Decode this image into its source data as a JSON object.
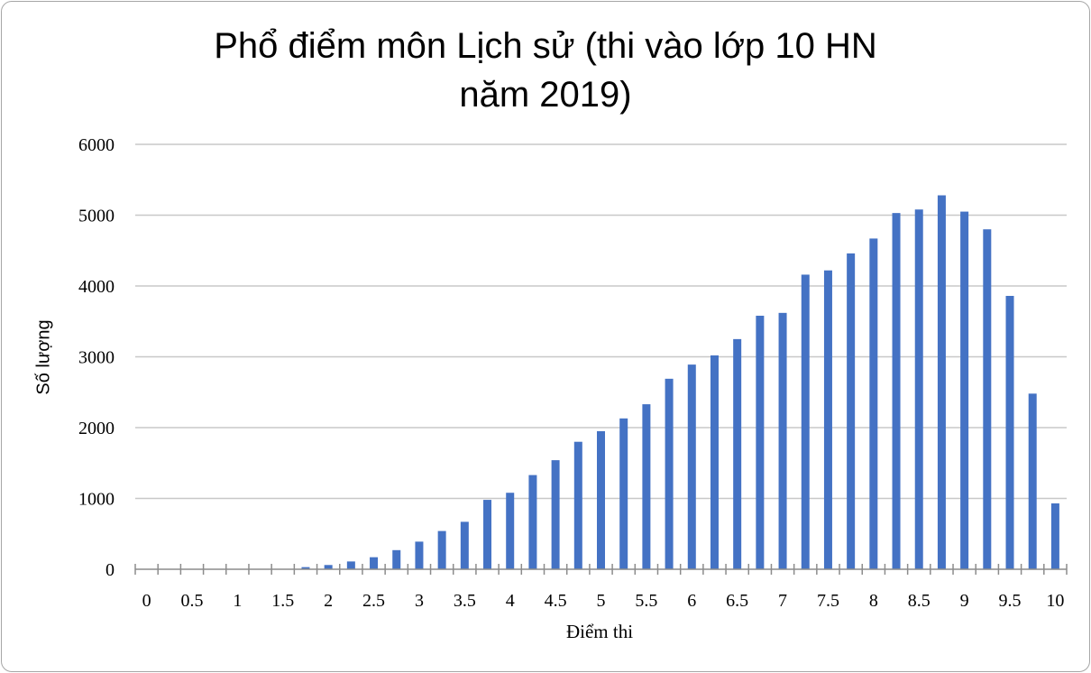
{
  "chart_data": {
    "type": "bar",
    "title_line1": "Phổ điểm môn Lịch sử (thi vào lớp 10 HN",
    "title_line2": "năm 2019)",
    "xlabel": "Điểm thi",
    "ylabel": "Số lượng",
    "ylim": [
      0,
      6000
    ],
    "yticks": [
      0,
      1000,
      2000,
      3000,
      4000,
      5000,
      6000
    ],
    "grid": true,
    "bar_color": "#4472c4",
    "categories": [
      0,
      0.25,
      0.5,
      0.75,
      1,
      1.25,
      1.5,
      1.75,
      2,
      2.25,
      2.5,
      2.75,
      3,
      3.25,
      3.5,
      3.75,
      4,
      4.25,
      4.5,
      4.75,
      5,
      5.25,
      5.5,
      5.75,
      6,
      6.25,
      6.5,
      6.75,
      7,
      7.25,
      7.5,
      7.75,
      8,
      8.25,
      8.5,
      8.75,
      9,
      9.25,
      9.5,
      9.75,
      10
    ],
    "xtick_labels": [
      "0",
      "0.5",
      "1",
      "1.5",
      "2",
      "2.5",
      "3",
      "3.5",
      "4",
      "4.5",
      "5",
      "5.5",
      "6",
      "6.5",
      "7",
      "7.5",
      "8",
      "8.5",
      "9",
      "9.5",
      "10"
    ],
    "values": [
      0,
      0,
      0,
      0,
      0,
      0,
      0,
      30,
      60,
      110,
      170,
      270,
      390,
      540,
      670,
      980,
      1080,
      1330,
      1540,
      1800,
      1950,
      2130,
      2330,
      2690,
      2890,
      3020,
      3250,
      3580,
      3620,
      4160,
      4220,
      4460,
      4670,
      5030,
      5080,
      5280,
      5050,
      4800,
      3860,
      2480,
      930
    ]
  }
}
